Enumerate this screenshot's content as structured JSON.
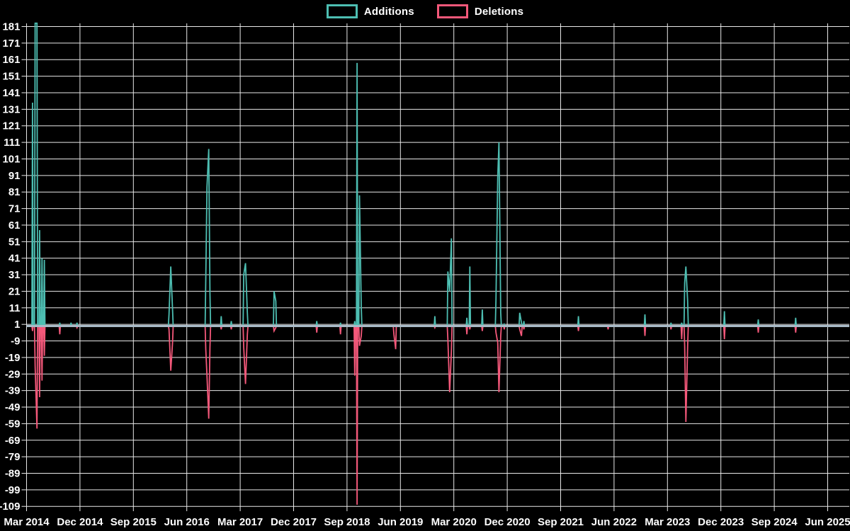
{
  "chart_data": {
    "type": "line",
    "title": "",
    "description": "Weekly additions and deletions spike chart on black background",
    "legend": [
      {
        "label": "Additions",
        "color": "#4DBEB2"
      },
      {
        "label": "Deletions",
        "color": "#F4587A"
      }
    ],
    "legend_position": "top-center",
    "grid": true,
    "colors": {
      "background": "#000000",
      "grid_line": "#e8e8e8",
      "zero_baseline": "#A8BAC7",
      "tick_text": "#ffffff",
      "additions": "#4DBEB2",
      "deletions": "#F4587A"
    },
    "y_axis": {
      "min": -109,
      "max": 181,
      "tick_step": 10,
      "tick_labels": [
        "181",
        "171",
        "161",
        "151",
        "141",
        "131",
        "121",
        "111",
        "101",
        "91",
        "81",
        "71",
        "61",
        "51",
        "41",
        "31",
        "21",
        "11",
        "1",
        "-9",
        "-19",
        "-29",
        "-39",
        "-49",
        "-59",
        "-69",
        "-79",
        "-89",
        "-99",
        "-109"
      ]
    },
    "x_axis": {
      "tick_labels": [
        "Mar 2014",
        "Dec 2014",
        "Sep 2015",
        "Jun 2016",
        "Mar 2017",
        "Dec 2017",
        "Sep 2018",
        "Jun 2019",
        "Mar 2020",
        "Dec 2020",
        "Sep 2021",
        "Jun 2022",
        "Mar 2023",
        "Dec 2023",
        "Sep 2024",
        "Jun 2025"
      ],
      "tick_spacing_months": 9,
      "start": "Mar 2014",
      "end": "Jun 2025"
    },
    "series_note": "events are spikes: m = months after Mar 2014, a = additions (up, teal), d = deletions (down, pink); value 0 between events",
    "events": [
      {
        "m": 1.0,
        "a": 135,
        "d": -3
      },
      {
        "m": 1.45,
        "a": 183,
        "d": -24
      },
      {
        "m": 1.75,
        "a": 183,
        "d": -62
      },
      {
        "m": 2.2,
        "a": 58,
        "d": -43
      },
      {
        "m": 2.6,
        "a": 41,
        "d": -33
      },
      {
        "m": 3.0,
        "a": 40,
        "d": -18
      },
      {
        "m": 5.6,
        "a": 2,
        "d": -5
      },
      {
        "m": 7.5,
        "a": 2,
        "d": 0
      },
      {
        "m": 8.5,
        "a": 2,
        "d": -1
      },
      {
        "m": 24.0,
        "a": 7,
        "d": -2
      },
      {
        "m": 24.3,
        "a": 36,
        "d": -27
      },
      {
        "m": 24.6,
        "a": 10,
        "d": -10
      },
      {
        "m": 30.2,
        "a": 28,
        "d": -14
      },
      {
        "m": 30.4,
        "a": 84,
        "d": -30
      },
      {
        "m": 30.7,
        "a": 107,
        "d": -56
      },
      {
        "m": 30.9,
        "a": 20,
        "d": -13
      },
      {
        "m": 32.8,
        "a": 6,
        "d": -2
      },
      {
        "m": 34.5,
        "a": 3,
        "d": -2
      },
      {
        "m": 36.6,
        "a": 31,
        "d": -13
      },
      {
        "m": 36.9,
        "a": 38,
        "d": -35
      },
      {
        "m": 37.2,
        "a": 8,
        "d": -5
      },
      {
        "m": 41.7,
        "a": 21,
        "d": -3
      },
      {
        "m": 42.0,
        "a": 15,
        "d": -1
      },
      {
        "m": 48.9,
        "a": 3,
        "d": -4
      },
      {
        "m": 52.9,
        "a": 2,
        "d": -5
      },
      {
        "m": 55.3,
        "a": 3,
        "d": -30
      },
      {
        "m": 55.7,
        "a": 159,
        "d": -108
      },
      {
        "m": 56.1,
        "a": 79,
        "d": -12
      },
      {
        "m": 56.4,
        "a": 12,
        "d": -6
      },
      {
        "m": 61.9,
        "a": 0,
        "d": -5
      },
      {
        "m": 62.2,
        "a": 0,
        "d": -14
      },
      {
        "m": 68.8,
        "a": 6,
        "d": -1
      },
      {
        "m": 71.0,
        "a": 33,
        "d": -8
      },
      {
        "m": 71.3,
        "a": 21,
        "d": -40
      },
      {
        "m": 71.6,
        "a": 53,
        "d": -15
      },
      {
        "m": 74.2,
        "a": 5,
        "d": -5
      },
      {
        "m": 74.7,
        "a": 36,
        "d": -2
      },
      {
        "m": 76.8,
        "a": 10,
        "d": -3
      },
      {
        "m": 79.1,
        "a": 16,
        "d": -4
      },
      {
        "m": 79.4,
        "a": 90,
        "d": -10
      },
      {
        "m": 79.6,
        "a": 111,
        "d": -40
      },
      {
        "m": 79.9,
        "a": 8,
        "d": -6
      },
      {
        "m": 80.5,
        "a": 1,
        "d": -2
      },
      {
        "m": 83.1,
        "a": 8,
        "d": -2
      },
      {
        "m": 83.4,
        "a": 2,
        "d": -6
      },
      {
        "m": 83.8,
        "a": 3,
        "d": -2
      },
      {
        "m": 93.0,
        "a": 6,
        "d": -3
      },
      {
        "m": 98.0,
        "a": 0,
        "d": -2
      },
      {
        "m": 104.2,
        "a": 7,
        "d": -6
      },
      {
        "m": 108.6,
        "a": 2,
        "d": -2
      },
      {
        "m": 110.4,
        "a": 2,
        "d": -8
      },
      {
        "m": 110.9,
        "a": 26,
        "d": -12
      },
      {
        "m": 111.1,
        "a": 36,
        "d": -58
      },
      {
        "m": 111.4,
        "a": 15,
        "d": -12
      },
      {
        "m": 117.6,
        "a": 9,
        "d": -8
      },
      {
        "m": 123.3,
        "a": 4,
        "d": -4
      },
      {
        "m": 129.6,
        "a": 5,
        "d": -4
      }
    ]
  }
}
